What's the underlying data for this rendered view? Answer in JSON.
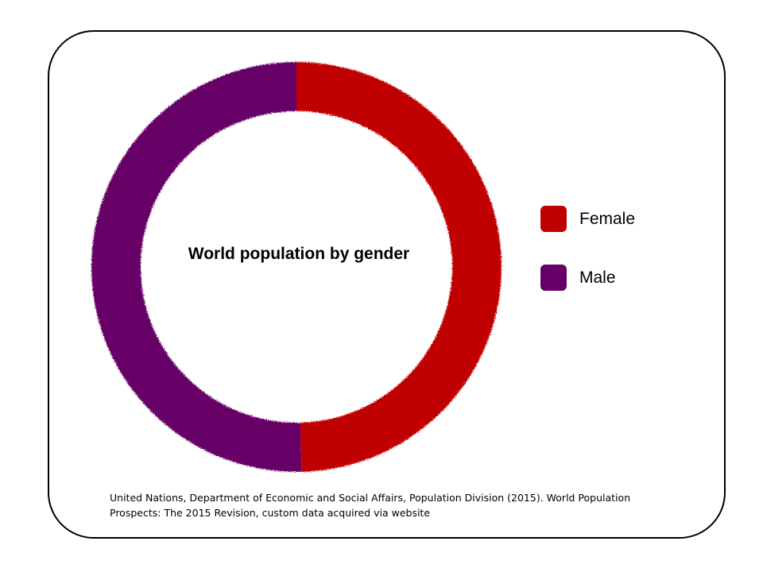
{
  "colors": {
    "female": "#C00000",
    "male": "#660066"
  },
  "chart_data": {
    "type": "pie",
    "variant": "donut",
    "title": "World population by gender",
    "series": [
      {
        "name": "Female",
        "value": 49.6,
        "color": "#C00000"
      },
      {
        "name": "Male",
        "value": 50.4,
        "color": "#660066"
      }
    ],
    "legend_position": "right"
  },
  "legend": [
    {
      "label": "Female",
      "color": "#C00000"
    },
    {
      "label": "Male",
      "color": "#660066"
    }
  ],
  "source": {
    "line1": "United Nations, Department of Economic and Social Affairs, Population Division (2015). World Population",
    "line2": "Prospects: The 2015 Revision, custom data acquired via website"
  }
}
